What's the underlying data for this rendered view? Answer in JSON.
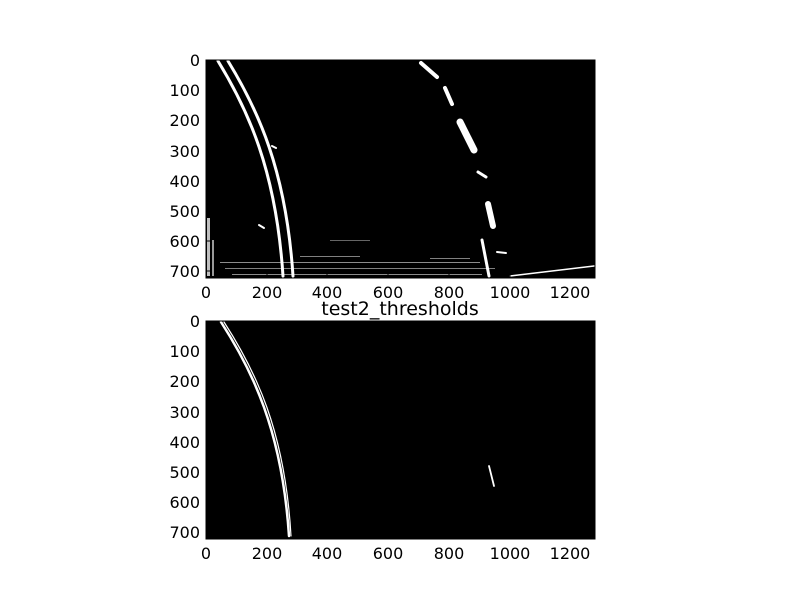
{
  "figure": {
    "background": "#ffffff",
    "panels": [
      {
        "title": "",
        "xticks": [
          "0",
          "200",
          "400",
          "600",
          "800",
          "1000",
          "1200"
        ],
        "yticks": [
          "0",
          "100",
          "200",
          "300",
          "400",
          "500",
          "600",
          "700"
        ],
        "image_description_colors": {
          "background": "#000000",
          "pixels": "#ffffff"
        }
      },
      {
        "title": "test2_thresholds",
        "xticks": [
          "0",
          "200",
          "400",
          "600",
          "800",
          "1000",
          "1200"
        ],
        "yticks": [
          "0",
          "100",
          "200",
          "300",
          "400",
          "500",
          "600",
          "700"
        ],
        "image_description_colors": {
          "background": "#000000",
          "pixels": "#ffffff"
        }
      }
    ]
  }
}
